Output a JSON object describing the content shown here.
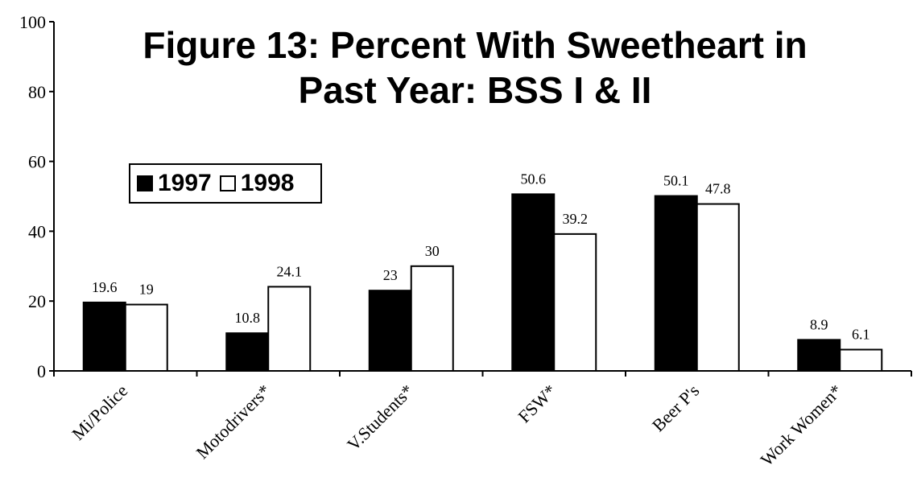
{
  "chart_data": {
    "type": "bar",
    "title_lines": [
      "Figure 13: Percent With Sweetheart in",
      "Past Year: BSS I & II"
    ],
    "categories": [
      "Mi/Police",
      "Motodrivers*",
      "V.Students*",
      "FSW*",
      "Beer P's",
      "Work Women*"
    ],
    "series": [
      {
        "name": "1997",
        "values": [
          19.6,
          10.8,
          23,
          50.6,
          50.1,
          8.9
        ],
        "color": "#000000",
        "labels": [
          "19.6",
          "10.8",
          "23",
          "50.6",
          "50.1",
          "8.9"
        ]
      },
      {
        "name": "1998",
        "values": [
          19,
          24.1,
          30,
          39.2,
          47.8,
          6.1
        ],
        "color": "#ffffff",
        "labels": [
          "19",
          "24.1",
          "30",
          "39.2",
          "47.8",
          "6.1"
        ]
      }
    ],
    "yticks": [
      "0",
      "20",
      "40",
      "60",
      "80",
      "100"
    ],
    "ylim": [
      0,
      100
    ],
    "xlabel": "",
    "ylabel": "",
    "grid": false,
    "legend_position": "top-left"
  }
}
